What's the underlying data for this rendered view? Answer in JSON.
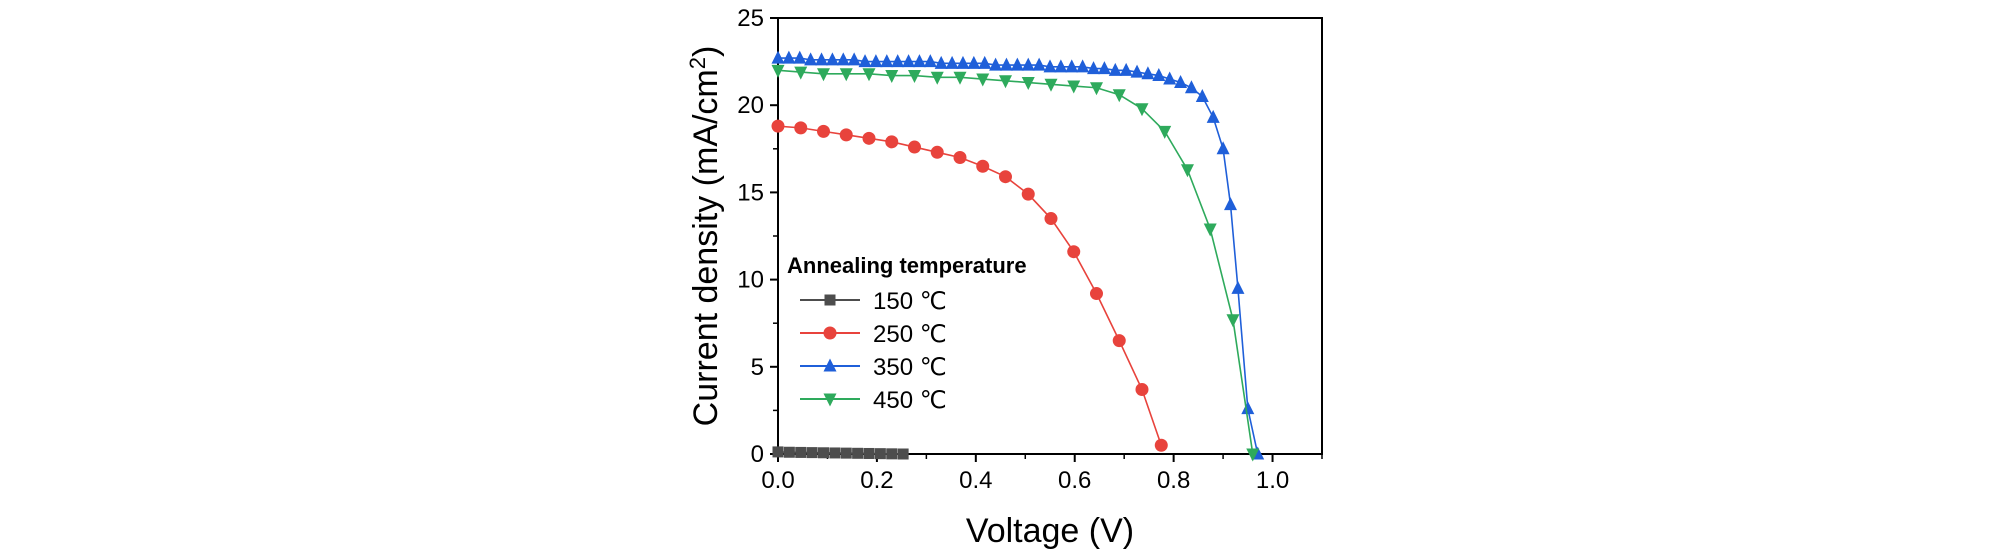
{
  "chart_data": {
    "type": "line",
    "xlabel": "Voltage (V)",
    "ylabel_main": "Current density (mA/cm",
    "ylabel_sup": "2",
    "ylabel_end": ")",
    "xlim": [
      0.0,
      1.1
    ],
    "ylim": [
      0,
      25
    ],
    "xticks": [
      0.0,
      0.2,
      0.4,
      0.6,
      0.8,
      1.0
    ],
    "xtick_labels": [
      "0.0",
      "0.2",
      "0.4",
      "0.6",
      "0.8",
      "1.0"
    ],
    "yticks": [
      0,
      5,
      10,
      15,
      20,
      25
    ],
    "ytick_labels": [
      "0",
      "5",
      "10",
      "15",
      "20",
      "25"
    ],
    "grid": false,
    "legend_title": "Annealing temperature",
    "legend_position": "left-middle",
    "series": [
      {
        "name": "150 ℃",
        "color": "#4d4d4d",
        "marker": "square",
        "x": [
          0.0,
          0.023,
          0.046,
          0.069,
          0.092,
          0.115,
          0.138,
          0.161,
          0.184,
          0.207,
          0.23,
          0.253
        ],
        "y": [
          0.12,
          0.1,
          0.09,
          0.08,
          0.07,
          0.06,
          0.05,
          0.04,
          0.03,
          0.02,
          0.01,
          0.0
        ]
      },
      {
        "name": "250 ℃",
        "color": "#e8433c",
        "marker": "circle",
        "x": [
          0.0,
          0.046,
          0.092,
          0.138,
          0.184,
          0.23,
          0.276,
          0.322,
          0.368,
          0.414,
          0.46,
          0.506,
          0.552,
          0.598,
          0.644,
          0.69,
          0.736,
          0.775
        ],
        "y": [
          18.8,
          18.7,
          18.5,
          18.3,
          18.1,
          17.9,
          17.6,
          17.3,
          17.0,
          16.5,
          15.9,
          14.9,
          13.5,
          11.6,
          9.2,
          6.5,
          3.7,
          0.5
        ]
      },
      {
        "name": "350 ℃",
        "color": "#1f5fd9",
        "marker": "triangle-up",
        "x": [
          0.0,
          0.022,
          0.044,
          0.066,
          0.088,
          0.11,
          0.132,
          0.154,
          0.176,
          0.198,
          0.22,
          0.242,
          0.264,
          0.286,
          0.308,
          0.33,
          0.352,
          0.374,
          0.396,
          0.418,
          0.44,
          0.462,
          0.484,
          0.506,
          0.528,
          0.55,
          0.572,
          0.594,
          0.616,
          0.638,
          0.66,
          0.682,
          0.704,
          0.726,
          0.748,
          0.77,
          0.792,
          0.814,
          0.836,
          0.858,
          0.88,
          0.9,
          0.915,
          0.93,
          0.95,
          0.97
        ],
        "y": [
          22.7,
          22.7,
          22.7,
          22.6,
          22.6,
          22.6,
          22.6,
          22.6,
          22.5,
          22.5,
          22.5,
          22.5,
          22.5,
          22.5,
          22.5,
          22.4,
          22.4,
          22.4,
          22.4,
          22.4,
          22.3,
          22.3,
          22.3,
          22.3,
          22.3,
          22.2,
          22.2,
          22.2,
          22.2,
          22.1,
          22.1,
          22.0,
          22.0,
          21.9,
          21.8,
          21.7,
          21.5,
          21.3,
          21.0,
          20.5,
          19.3,
          17.5,
          14.3,
          9.5,
          2.6,
          0.0
        ]
      },
      {
        "name": "450 ℃",
        "color": "#2eaa5c",
        "marker": "triangle-down",
        "x": [
          0.0,
          0.046,
          0.092,
          0.138,
          0.184,
          0.23,
          0.276,
          0.322,
          0.368,
          0.414,
          0.46,
          0.506,
          0.552,
          0.598,
          0.644,
          0.69,
          0.736,
          0.782,
          0.828,
          0.874,
          0.92,
          0.96
        ],
        "y": [
          22.0,
          21.9,
          21.8,
          21.8,
          21.8,
          21.7,
          21.7,
          21.6,
          21.6,
          21.5,
          21.4,
          21.3,
          21.2,
          21.1,
          21.0,
          20.6,
          19.8,
          18.5,
          16.3,
          12.9,
          7.7,
          0.0
        ]
      }
    ]
  }
}
